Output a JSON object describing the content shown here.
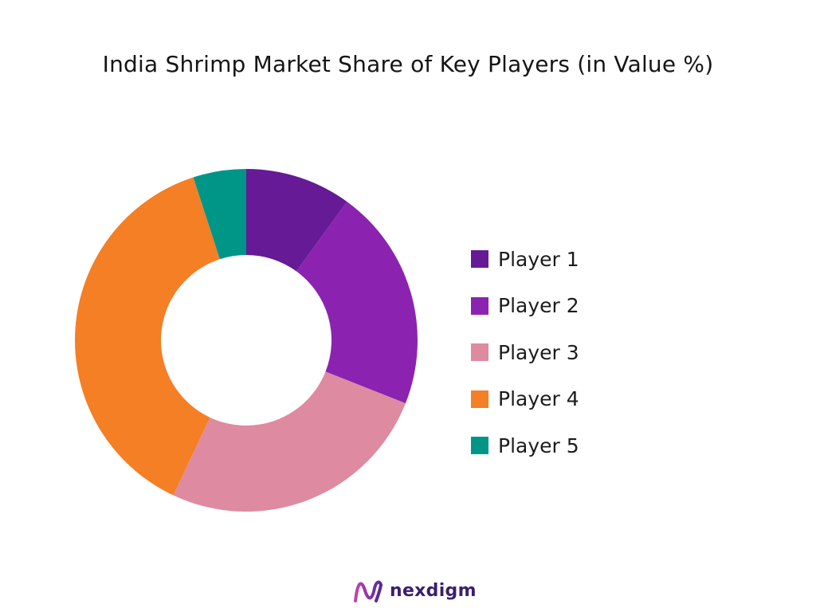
{
  "chart_data": {
    "type": "pie",
    "variant": "donut",
    "title": "India Shrimp Market Share of Key Players (in Value %)",
    "series": [
      {
        "name": "Player 1",
        "value": 10,
        "color": "#661a96"
      },
      {
        "name": "Player 2",
        "value": 21,
        "color": "#8b23b0"
      },
      {
        "name": "Player 3",
        "value": 26,
        "color": "#de8aa0"
      },
      {
        "name": "Player 4",
        "value": 38,
        "color": "#f47f24"
      },
      {
        "name": "Player 5",
        "value": 5,
        "color": "#009687"
      }
    ],
    "legend_position": "right"
  },
  "branding": {
    "logo_text": "nexdigm",
    "logo_color": "#3b1f6e"
  }
}
